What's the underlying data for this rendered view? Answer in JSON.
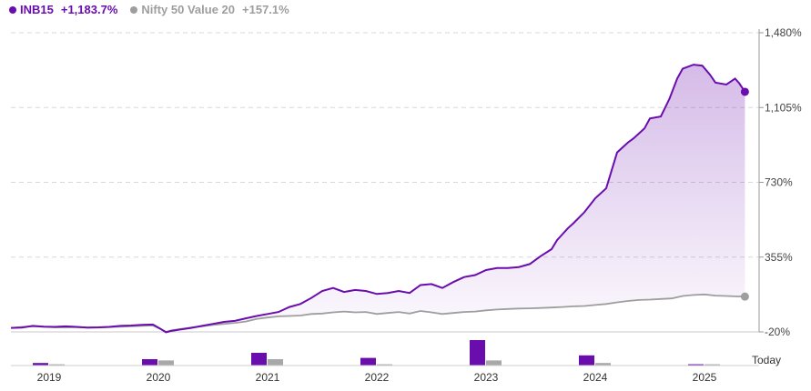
{
  "legend": {
    "series1_label": "INB15",
    "series1_value": "+1,183.7%",
    "series2_label": "Nifty 50 Value 20",
    "series2_value": "+157.1%"
  },
  "colors": {
    "series1": "#6a0dad",
    "series2": "#9e9e9e",
    "grid": "#d8d8d8"
  },
  "chart_data": {
    "type": "line",
    "y_tick_labels": [
      "-20%",
      "355%",
      "730%",
      "1,105%",
      "1,480%"
    ],
    "y_ticks": [
      -20,
      355,
      730,
      1105,
      1480
    ],
    "ylim": [
      -20,
      1480
    ],
    "x_tick_labels": [
      "2019",
      "2020",
      "2021",
      "2022",
      "2023",
      "2024",
      "2025"
    ],
    "x_tick_positions": [
      2019.1,
      2020.1,
      2021.1,
      2022.1,
      2023.1,
      2024.1,
      2025.1
    ],
    "today_label": "Today",
    "xlim": [
      2018.75,
      2025.6
    ],
    "series": [
      {
        "name": "INB15",
        "final_value": 1183.7,
        "points": [
          [
            2018.75,
            0
          ],
          [
            2018.85,
            2
          ],
          [
            2018.95,
            10
          ],
          [
            2019.05,
            6
          ],
          [
            2019.15,
            5
          ],
          [
            2019.25,
            8
          ],
          [
            2019.35,
            5
          ],
          [
            2019.45,
            2
          ],
          [
            2019.55,
            3
          ],
          [
            2019.65,
            5
          ],
          [
            2019.75,
            10
          ],
          [
            2019.85,
            12
          ],
          [
            2019.95,
            15
          ],
          [
            2020.05,
            17
          ],
          [
            2020.12,
            -5
          ],
          [
            2020.17,
            -22
          ],
          [
            2020.22,
            -15
          ],
          [
            2020.3,
            -8
          ],
          [
            2020.4,
            0
          ],
          [
            2020.5,
            10
          ],
          [
            2020.6,
            20
          ],
          [
            2020.7,
            30
          ],
          [
            2020.8,
            35
          ],
          [
            2020.9,
            48
          ],
          [
            2021.0,
            60
          ],
          [
            2021.1,
            70
          ],
          [
            2021.2,
            80
          ],
          [
            2021.3,
            105
          ],
          [
            2021.4,
            120
          ],
          [
            2021.5,
            150
          ],
          [
            2021.6,
            185
          ],
          [
            2021.7,
            200
          ],
          [
            2021.8,
            180
          ],
          [
            2021.9,
            190
          ],
          [
            2022.0,
            185
          ],
          [
            2022.1,
            170
          ],
          [
            2022.2,
            175
          ],
          [
            2022.3,
            185
          ],
          [
            2022.4,
            175
          ],
          [
            2022.5,
            215
          ],
          [
            2022.6,
            220
          ],
          [
            2022.7,
            200
          ],
          [
            2022.8,
            230
          ],
          [
            2022.9,
            255
          ],
          [
            2023.0,
            265
          ],
          [
            2023.1,
            290
          ],
          [
            2023.2,
            300
          ],
          [
            2023.3,
            300
          ],
          [
            2023.4,
            305
          ],
          [
            2023.5,
            320
          ],
          [
            2023.6,
            360
          ],
          [
            2023.7,
            395
          ],
          [
            2023.75,
            440
          ],
          [
            2023.8,
            470
          ],
          [
            2023.85,
            500
          ],
          [
            2023.9,
            525
          ],
          [
            2024.0,
            580
          ],
          [
            2024.1,
            650
          ],
          [
            2024.2,
            700
          ],
          [
            2024.3,
            880
          ],
          [
            2024.4,
            930
          ],
          [
            2024.45,
            950
          ],
          [
            2024.55,
            1000
          ],
          [
            2024.6,
            1050
          ],
          [
            2024.7,
            1060
          ],
          [
            2024.78,
            1150
          ],
          [
            2024.85,
            1250
          ],
          [
            2024.9,
            1300
          ],
          [
            2025.0,
            1320
          ],
          [
            2025.08,
            1315
          ],
          [
            2025.15,
            1270
          ],
          [
            2025.2,
            1230
          ],
          [
            2025.3,
            1220
          ],
          [
            2025.38,
            1250
          ],
          [
            2025.42,
            1225
          ],
          [
            2025.47,
            1183.7
          ]
        ]
      },
      {
        "name": "Nifty 50 Value 20",
        "final_value": 157.1,
        "points": [
          [
            2018.75,
            0
          ],
          [
            2018.85,
            5
          ],
          [
            2018.95,
            8
          ],
          [
            2019.05,
            6
          ],
          [
            2019.15,
            3
          ],
          [
            2019.25,
            2
          ],
          [
            2019.35,
            4
          ],
          [
            2019.45,
            1
          ],
          [
            2019.55,
            2
          ],
          [
            2019.65,
            4
          ],
          [
            2019.75,
            6
          ],
          [
            2019.85,
            8
          ],
          [
            2019.95,
            10
          ],
          [
            2020.05,
            12
          ],
          [
            2020.12,
            -5
          ],
          [
            2020.17,
            -20
          ],
          [
            2020.22,
            -12
          ],
          [
            2020.3,
            -6
          ],
          [
            2020.4,
            2
          ],
          [
            2020.5,
            8
          ],
          [
            2020.6,
            15
          ],
          [
            2020.7,
            20
          ],
          [
            2020.8,
            25
          ],
          [
            2020.9,
            32
          ],
          [
            2021.0,
            45
          ],
          [
            2021.1,
            52
          ],
          [
            2021.2,
            58
          ],
          [
            2021.3,
            60
          ],
          [
            2021.4,
            62
          ],
          [
            2021.5,
            70
          ],
          [
            2021.6,
            72
          ],
          [
            2021.7,
            78
          ],
          [
            2021.8,
            82
          ],
          [
            2021.9,
            78
          ],
          [
            2022.0,
            80
          ],
          [
            2022.1,
            70
          ],
          [
            2022.2,
            75
          ],
          [
            2022.3,
            80
          ],
          [
            2022.4,
            72
          ],
          [
            2022.5,
            85
          ],
          [
            2022.6,
            78
          ],
          [
            2022.7,
            70
          ],
          [
            2022.8,
            75
          ],
          [
            2022.9,
            80
          ],
          [
            2023.0,
            82
          ],
          [
            2023.1,
            88
          ],
          [
            2023.2,
            92
          ],
          [
            2023.3,
            95
          ],
          [
            2023.4,
            97
          ],
          [
            2023.5,
            98
          ],
          [
            2023.6,
            100
          ],
          [
            2023.7,
            102
          ],
          [
            2023.8,
            105
          ],
          [
            2023.9,
            108
          ],
          [
            2024.0,
            110
          ],
          [
            2024.1,
            115
          ],
          [
            2024.2,
            120
          ],
          [
            2024.3,
            128
          ],
          [
            2024.4,
            135
          ],
          [
            2024.5,
            140
          ],
          [
            2024.6,
            142
          ],
          [
            2024.7,
            145
          ],
          [
            2024.8,
            148
          ],
          [
            2024.9,
            160
          ],
          [
            2025.0,
            165
          ],
          [
            2025.1,
            168
          ],
          [
            2025.2,
            162
          ],
          [
            2025.3,
            160
          ],
          [
            2025.4,
            158
          ],
          [
            2025.47,
            157.1
          ]
        ]
      }
    ],
    "bars": {
      "x_positions": [
        2019.1,
        2020.1,
        2021.1,
        2022.1,
        2023.1,
        2024.1,
        2025.1
      ],
      "series1_values": [
        2,
        5,
        10,
        6,
        20,
        8,
        1
      ],
      "series2_values": [
        1,
        4,
        5,
        1,
        4,
        2,
        1
      ]
    }
  }
}
